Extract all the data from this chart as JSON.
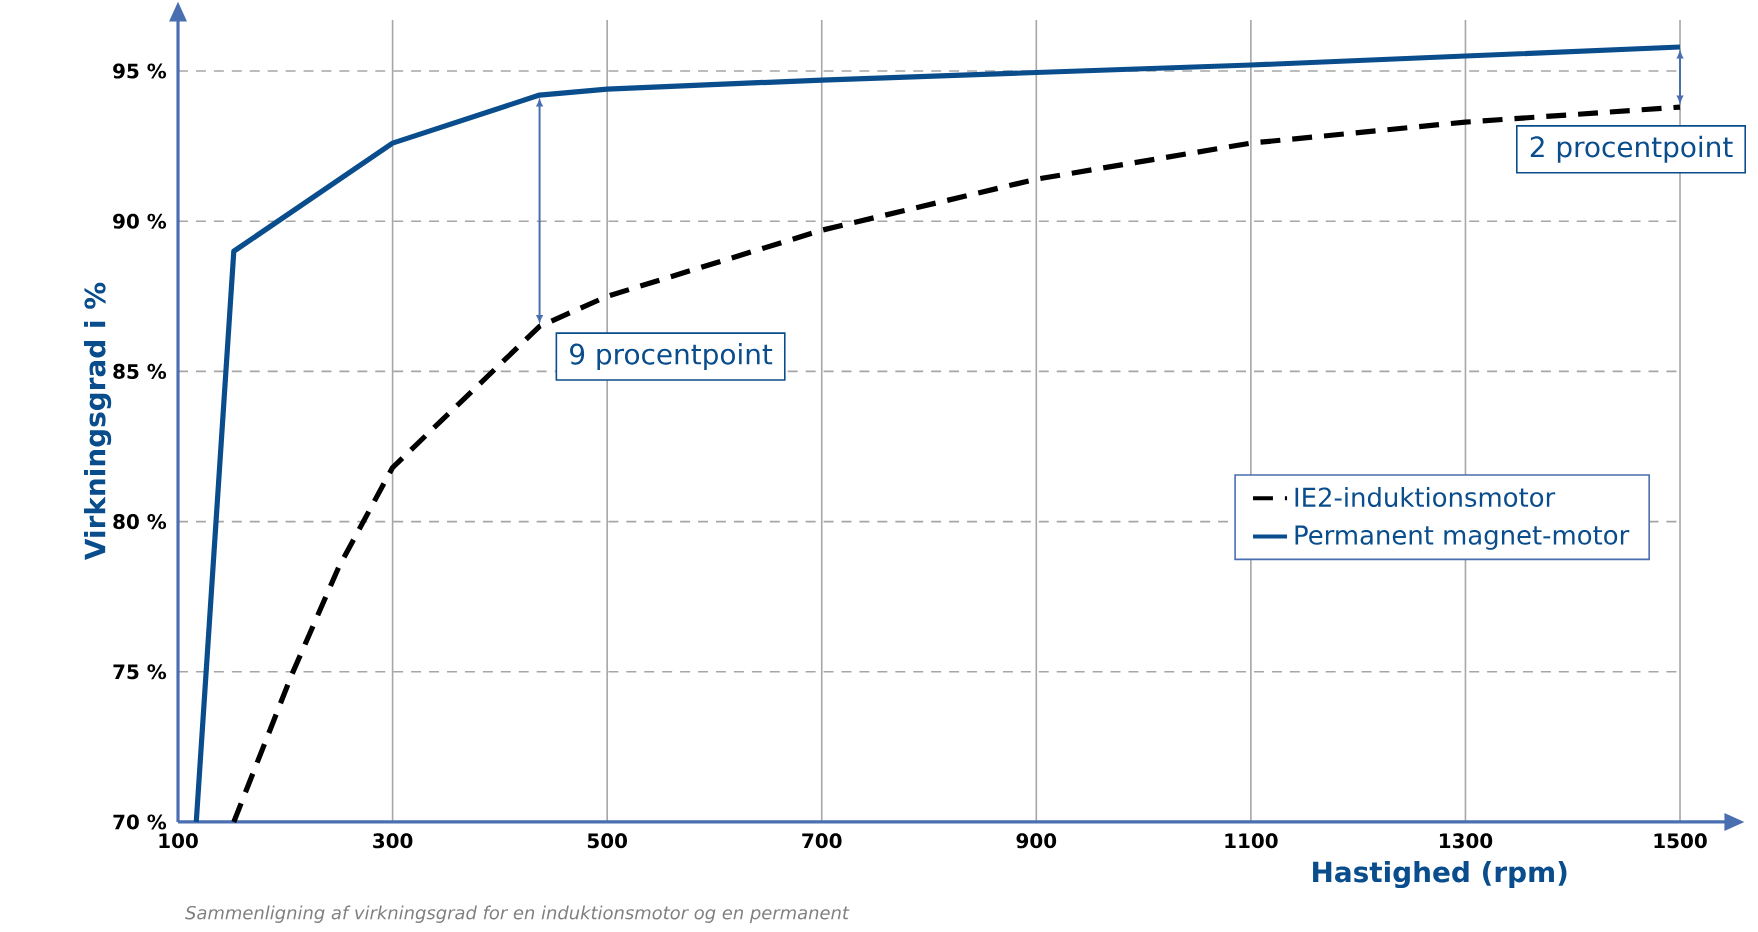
{
  "chart_data": {
    "type": "line",
    "xlabel": "Hastighed (rpm)",
    "ylabel": "Virkningsgrad i %",
    "xlim": [
      100,
      1500
    ],
    "ylim": [
      70,
      96.7
    ],
    "xticks": [
      100,
      300,
      500,
      700,
      900,
      1100,
      1300,
      1500
    ],
    "yticks": [
      {
        "value": 70,
        "label": "70 %"
      },
      {
        "value": 75,
        "label": "75 %"
      },
      {
        "value": 80,
        "label": "80 %"
      },
      {
        "value": 85,
        "label": "85 %"
      },
      {
        "value": 90,
        "label": "90 %"
      },
      {
        "value": 95,
        "label": "95 %"
      }
    ],
    "grid": true,
    "legend": "right",
    "series": [
      {
        "name": "IE2-induktionsmotor",
        "color": "#000000",
        "line_style": "dashed",
        "x": [
          152,
          206,
          250,
          300,
          437,
          500,
          700,
          900,
          1100,
          1300,
          1500
        ],
        "values": [
          70,
          74.9,
          78.5,
          81.8,
          86.5,
          87.5,
          89.7,
          91.4,
          92.6,
          93.3,
          93.8
        ]
      },
      {
        "name": "Permanent magnet-motor",
        "color": "#0a4d8c",
        "line_style": "solid",
        "x": [
          117,
          152,
          300,
          437,
          500,
          700,
          900,
          1100,
          1300,
          1500
        ],
        "values": [
          70,
          89,
          92.6,
          94.2,
          94.4,
          94.7,
          94.95,
          95.2,
          95.5,
          95.8
        ]
      }
    ],
    "annotations": [
      {
        "text": "9 procentpoint",
        "x": 437,
        "y": 86.5
      },
      {
        "text": "2 procentpoint",
        "x": 1500,
        "y": 93.8
      },
      "Sammenligning af virkningsgrad for en induktionsmotor og en permanent"
    ]
  }
}
